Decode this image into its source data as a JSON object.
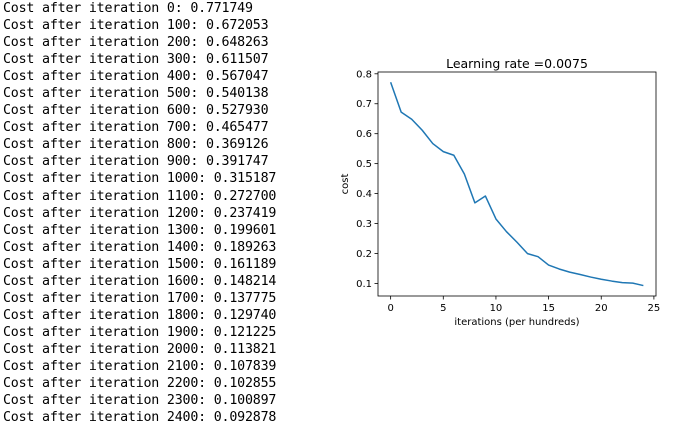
{
  "cost_log": [
    "Cost after iteration 0: 0.771749",
    "Cost after iteration 100: 0.672053",
    "Cost after iteration 200: 0.648263",
    "Cost after iteration 300: 0.611507",
    "Cost after iteration 400: 0.567047",
    "Cost after iteration 500: 0.540138",
    "Cost after iteration 600: 0.527930",
    "Cost after iteration 700: 0.465477",
    "Cost after iteration 800: 0.369126",
    "Cost after iteration 900: 0.391747",
    "Cost after iteration 1000: 0.315187",
    "Cost after iteration 1100: 0.272700",
    "Cost after iteration 1200: 0.237419",
    "Cost after iteration 1300: 0.199601",
    "Cost after iteration 1400: 0.189263",
    "Cost after iteration 1500: 0.161189",
    "Cost after iteration 1600: 0.148214",
    "Cost after iteration 1700: 0.137775",
    "Cost after iteration 1800: 0.129740",
    "Cost after iteration 1900: 0.121225",
    "Cost after iteration 2000: 0.113821",
    "Cost after iteration 2100: 0.107839",
    "Cost after iteration 2200: 0.102855",
    "Cost after iteration 2300: 0.100897",
    "Cost after iteration 2400: 0.092878"
  ],
  "chart_data": {
    "type": "line",
    "title": "Learning rate =0.0075",
    "xlabel": "iterations (per hundreds)",
    "ylabel": "cost",
    "x": [
      0,
      1,
      2,
      3,
      4,
      5,
      6,
      7,
      8,
      9,
      10,
      11,
      12,
      13,
      14,
      15,
      16,
      17,
      18,
      19,
      20,
      21,
      22,
      23,
      24
    ],
    "series": [
      {
        "values": [
          0.771749,
          0.672053,
          0.648263,
          0.611507,
          0.567047,
          0.540138,
          0.52793,
          0.465477,
          0.369126,
          0.391747,
          0.315187,
          0.2727,
          0.237419,
          0.199601,
          0.189263,
          0.161189,
          0.148214,
          0.137775,
          0.12974,
          0.121225,
          0.113821,
          0.107839,
          0.102855,
          0.100897,
          0.092878
        ],
        "color": "#1f77b4"
      }
    ],
    "xlim": [
      -1.2,
      25.2
    ],
    "ylim": [
      0.058,
      0.806
    ],
    "xticks": [
      "0",
      "5",
      "10",
      "15",
      "20",
      "25"
    ],
    "yticks": [
      "0.1",
      "0.2",
      "0.3",
      "0.4",
      "0.5",
      "0.6",
      "0.7",
      "0.8"
    ],
    "grid": false
  }
}
